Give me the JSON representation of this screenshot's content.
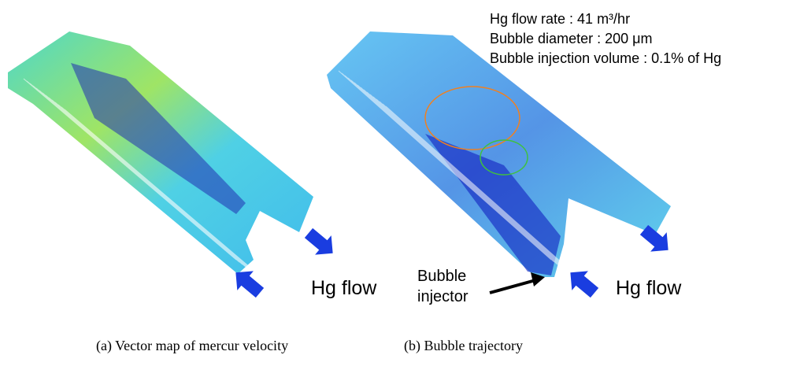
{
  "annotations": {
    "flow_conditions": [
      "Hg flow rate : 41 m³/hr",
      "Bubble diameter : 200 μm",
      "Bubble injection volume : 0.1% of Hg"
    ]
  },
  "panels": [
    {
      "caption": "(a) Vector map of mercur velocity",
      "flow_label": "Hg flow"
    },
    {
      "caption": "(b) Bubble trajectory",
      "flow_label": "Hg flow",
      "injector_label": [
        "Bubble",
        "injector"
      ]
    }
  ]
}
